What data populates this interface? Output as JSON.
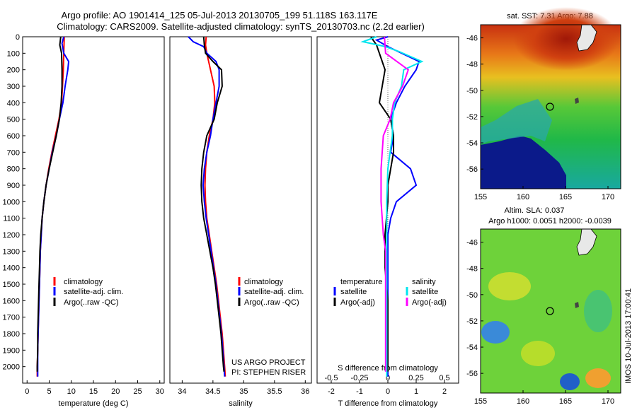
{
  "figure": {
    "title_line1": "Argo profile: AO 1901414_125 05-Jul-2013 20130705_199 51.118S 163.117E",
    "title_line2": "Climatology: CARS2009. Satellite-adjusted climatology: synTS_20130703.nc (2.2d earlier)",
    "credit_line1": "US ARGO PROJECT",
    "credit_line2": "PI: STEPHEN RISER",
    "timestamp": "IMOS 10-Jul-2013 17:00:41",
    "colors": {
      "climatology": "#ff0000",
      "satellite": "#0000ff",
      "argo": "#000000",
      "salinity_satellite": "#00e5ee",
      "salinity_argo": "#ff00ff"
    }
  },
  "chart_data": [
    {
      "type": "line",
      "panel": "temperature",
      "xlabel": "temperature (deg C)",
      "ylabel": "",
      "xlim": [
        -1,
        31
      ],
      "ylim": [
        2100,
        0
      ],
      "xticks": [
        0,
        5,
        10,
        15,
        20,
        25,
        30
      ],
      "yticks": [
        0,
        100,
        200,
        300,
        400,
        500,
        600,
        700,
        800,
        900,
        1000,
        1100,
        1200,
        1300,
        1400,
        1500,
        1600,
        1700,
        1800,
        1900,
        2000
      ],
      "legend": [
        "climatology",
        "satellite-adj. clim.",
        "Argo(..raw -QC)"
      ],
      "series": [
        {
          "name": "climatology",
          "color": "#ff0000",
          "points": [
            [
              8.4,
              0
            ],
            [
              8.3,
              100
            ],
            [
              8.2,
              200
            ],
            [
              8.0,
              300
            ],
            [
              7.8,
              400
            ],
            [
              7.2,
              500
            ],
            [
              6.4,
              600
            ],
            [
              5.6,
              700
            ],
            [
              4.9,
              800
            ],
            [
              4.3,
              900
            ],
            [
              3.8,
              1000
            ],
            [
              3.4,
              1100
            ],
            [
              3.2,
              1200
            ],
            [
              3.0,
              1300
            ],
            [
              2.9,
              1400
            ],
            [
              2.8,
              1500
            ],
            [
              2.7,
              1600
            ],
            [
              2.6,
              1700
            ],
            [
              2.5,
              1800
            ],
            [
              2.4,
              1900
            ],
            [
              2.3,
              2000
            ],
            [
              2.3,
              2060
            ]
          ]
        },
        {
          "name": "satellite-adj. clim.",
          "color": "#0000ff",
          "points": [
            [
              8.3,
              0
            ],
            [
              7.9,
              40
            ],
            [
              8.3,
              100
            ],
            [
              9.4,
              150
            ],
            [
              9.2,
              200
            ],
            [
              8.6,
              300
            ],
            [
              8.1,
              400
            ],
            [
              7.3,
              500
            ],
            [
              6.6,
              600
            ],
            [
              5.7,
              700
            ],
            [
              5.0,
              800
            ],
            [
              4.3,
              900
            ],
            [
              3.8,
              1000
            ],
            [
              3.4,
              1100
            ],
            [
              3.2,
              1200
            ],
            [
              3.0,
              1300
            ],
            [
              2.9,
              1400
            ],
            [
              2.8,
              1500
            ],
            [
              2.7,
              1600
            ],
            [
              2.6,
              1700
            ],
            [
              2.5,
              1800
            ],
            [
              2.4,
              1900
            ],
            [
              2.4,
              2000
            ],
            [
              2.4,
              2060
            ]
          ]
        },
        {
          "name": "Argo(..raw -QC)",
          "color": "#000000",
          "points": [
            [
              7.6,
              0
            ],
            [
              7.4,
              50
            ],
            [
              7.8,
              100
            ],
            [
              7.9,
              200
            ],
            [
              7.9,
              300
            ],
            [
              7.7,
              400
            ],
            [
              7.3,
              500
            ],
            [
              6.6,
              600
            ],
            [
              5.8,
              700
            ],
            [
              5.0,
              800
            ],
            [
              4.3,
              900
            ],
            [
              3.8,
              1000
            ],
            [
              3.4,
              1100
            ],
            [
              3.1,
              1200
            ],
            [
              2.9,
              1300
            ],
            [
              2.8,
              1400
            ],
            [
              2.7,
              1500
            ],
            [
              2.6,
              1600
            ],
            [
              2.5,
              1700
            ],
            [
              2.4,
              1800
            ],
            [
              2.4,
              1900
            ],
            [
              2.3,
              2000
            ],
            [
              2.3,
              2030
            ]
          ]
        }
      ]
    },
    {
      "type": "line",
      "panel": "salinity",
      "xlabel": "salinity",
      "ylabel": "",
      "xlim": [
        33.8,
        36.1
      ],
      "ylim": [
        2100,
        0
      ],
      "xticks": [
        34,
        34.5,
        35,
        35.5,
        36
      ],
      "xticklabels": [
        "34",
        "34.5",
        "35",
        "35.5",
        "36"
      ],
      "legend": [
        "climatology",
        "satellite-adj. clim.",
        "Argo(..raw -QC)"
      ],
      "series": [
        {
          "name": "climatology",
          "color": "#ff0000",
          "points": [
            [
              34.39,
              0
            ],
            [
              34.38,
              50
            ],
            [
              34.4,
              100
            ],
            [
              34.46,
              200
            ],
            [
              34.52,
              300
            ],
            [
              34.53,
              400
            ],
            [
              34.5,
              500
            ],
            [
              34.44,
              600
            ],
            [
              34.4,
              700
            ],
            [
              34.38,
              800
            ],
            [
              34.37,
              900
            ],
            [
              34.38,
              1000
            ],
            [
              34.4,
              1100
            ],
            [
              34.44,
              1200
            ],
            [
              34.48,
              1300
            ],
            [
              34.52,
              1400
            ],
            [
              34.56,
              1500
            ],
            [
              34.59,
              1600
            ],
            [
              34.62,
              1700
            ],
            [
              34.65,
              1800
            ],
            [
              34.67,
              1900
            ],
            [
              34.69,
              2000
            ],
            [
              34.7,
              2060
            ]
          ]
        },
        {
          "name": "satellite-adj. clim.",
          "color": "#0000ff",
          "points": [
            [
              34.1,
              0
            ],
            [
              34.18,
              30
            ],
            [
              34.35,
              60
            ],
            [
              34.4,
              100
            ],
            [
              34.55,
              150
            ],
            [
              34.6,
              200
            ],
            [
              34.6,
              300
            ],
            [
              34.55,
              400
            ],
            [
              34.5,
              500
            ],
            [
              34.46,
              600
            ],
            [
              34.4,
              700
            ],
            [
              34.36,
              800
            ],
            [
              34.34,
              900
            ],
            [
              34.36,
              1000
            ],
            [
              34.39,
              1100
            ],
            [
              34.43,
              1200
            ],
            [
              34.47,
              1300
            ],
            [
              34.51,
              1400
            ],
            [
              34.55,
              1500
            ],
            [
              34.58,
              1600
            ],
            [
              34.61,
              1700
            ],
            [
              34.64,
              1800
            ],
            [
              34.66,
              1900
            ],
            [
              34.68,
              2000
            ],
            [
              34.69,
              2060
            ]
          ]
        },
        {
          "name": "Argo(..raw -QC)",
          "color": "#000000",
          "points": [
            [
              34.35,
              0
            ],
            [
              34.36,
              50
            ],
            [
              34.38,
              100
            ],
            [
              34.5,
              150
            ],
            [
              34.64,
              200
            ],
            [
              34.65,
              300
            ],
            [
              34.57,
              400
            ],
            [
              34.52,
              500
            ],
            [
              34.4,
              600
            ],
            [
              34.35,
              700
            ],
            [
              34.32,
              800
            ],
            [
              34.31,
              900
            ],
            [
              34.32,
              1000
            ],
            [
              34.35,
              1100
            ],
            [
              34.4,
              1200
            ],
            [
              34.45,
              1300
            ],
            [
              34.5,
              1400
            ],
            [
              34.54,
              1500
            ],
            [
              34.57,
              1600
            ],
            [
              34.6,
              1700
            ],
            [
              34.63,
              1800
            ],
            [
              34.65,
              1900
            ],
            [
              34.67,
              2000
            ],
            [
              34.68,
              2030
            ]
          ]
        }
      ]
    },
    {
      "type": "line",
      "panel": "difference",
      "xlabel": "T difference from climatology",
      "xlabel_top": "S difference from climatology",
      "ylabel": "",
      "xlim": [
        -2.5,
        2.5
      ],
      "ylim": [
        2100,
        0
      ],
      "xticks_temperature": [
        -2,
        -1,
        0,
        1,
        2
      ],
      "xticks_salinity": [
        -0.5,
        -0.25,
        0,
        0.25,
        0.5
      ],
      "xticklabels_salinity": [
        "-0.5",
        "-0.25",
        "0",
        "0.25",
        "0.5"
      ],
      "legend_temperature_title": "temperature",
      "legend_salinity_title": "salinity",
      "legend_temperature": [
        "satellite",
        "Argo(-adj)"
      ],
      "legend_salinity": [
        "satellite",
        "Argo(-adj)"
      ],
      "series": [
        {
          "name": "temperature satellite",
          "color": "#0000ff",
          "points": [
            [
              0.0,
              0
            ],
            [
              -0.4,
              20
            ],
            [
              0.0,
              60
            ],
            [
              1.1,
              150
            ],
            [
              1.0,
              200
            ],
            [
              0.6,
              300
            ],
            [
              0.3,
              400
            ],
            [
              0.1,
              500
            ],
            [
              0.2,
              600
            ],
            [
              0.1,
              700
            ],
            [
              0.8,
              800
            ],
            [
              1.0,
              900
            ],
            [
              0.3,
              1000
            ],
            [
              0.1,
              1100
            ],
            [
              0.0,
              1200
            ],
            [
              0.0,
              1400
            ],
            [
              0.0,
              1600
            ],
            [
              0.0,
              1800
            ],
            [
              0.0,
              2000
            ],
            [
              0.0,
              2060
            ]
          ]
        },
        {
          "name": "temperature Argo(-adj)",
          "color": "#000000",
          "points": [
            [
              -0.6,
              0
            ],
            [
              -0.4,
              50
            ],
            [
              -0.3,
              100
            ],
            [
              -0.2,
              150
            ],
            [
              -0.1,
              200
            ],
            [
              -0.2,
              300
            ],
            [
              -0.3,
              400
            ],
            [
              0.1,
              500
            ],
            [
              0.2,
              600
            ],
            [
              0.2,
              700
            ],
            [
              0.1,
              800
            ],
            [
              0.0,
              900
            ],
            [
              0.0,
              1000
            ],
            [
              -0.1,
              1200
            ],
            [
              -0.1,
              1400
            ],
            [
              0.0,
              1600
            ],
            [
              0.0,
              1800
            ],
            [
              0.0,
              2000
            ],
            [
              0.0,
              2030
            ]
          ]
        },
        {
          "name": "salinity satellite",
          "color": "#00e5ee",
          "points": [
            [
              -0.1,
              0
            ],
            [
              -0.22,
              30
            ],
            [
              -0.02,
              60
            ],
            [
              0.1,
              90
            ],
            [
              0.3,
              150
            ],
            [
              0.14,
              200
            ],
            [
              0.12,
              300
            ],
            [
              0.06,
              400
            ],
            [
              0.04,
              500
            ],
            [
              0.04,
              600
            ],
            [
              0.02,
              700
            ],
            [
              0.0,
              800
            ],
            [
              -0.01,
              1000
            ],
            [
              -0.01,
              1200
            ],
            [
              -0.01,
              1400
            ],
            [
              -0.01,
              1600
            ],
            [
              -0.01,
              1800
            ],
            [
              -0.01,
              2000
            ],
            [
              -0.01,
              2060
            ]
          ]
        },
        {
          "name": "salinity Argo(-adj)",
          "color": "#ff00ff",
          "points": [
            [
              -0.03,
              0
            ],
            [
              -0.02,
              100
            ],
            [
              0.18,
              200
            ],
            [
              0.13,
              300
            ],
            [
              0.05,
              400
            ],
            [
              0.02,
              500
            ],
            [
              -0.04,
              600
            ],
            [
              -0.05,
              700
            ],
            [
              -0.06,
              800
            ],
            [
              -0.06,
              900
            ],
            [
              -0.06,
              1000
            ],
            [
              -0.05,
              1100
            ],
            [
              -0.04,
              1200
            ],
            [
              -0.02,
              1300
            ],
            [
              -0.02,
              1400
            ],
            [
              -0.02,
              1600
            ],
            [
              -0.02,
              1800
            ],
            [
              -0.02,
              2000
            ],
            [
              -0.02,
              2030
            ]
          ]
        }
      ]
    },
    {
      "type": "heatmap",
      "panel": "map_sst",
      "title": "sat. SST: 7.31  Argo: 7.88",
      "xlim": [
        155,
        171.5
      ],
      "ylim": [
        -57.5,
        -45
      ],
      "xticks": [
        155,
        160,
        165,
        170
      ],
      "yticks": [
        -46,
        -48,
        -50,
        -52,
        -54,
        -56
      ],
      "marker": {
        "lon": 163.1,
        "lat": -51.1
      }
    },
    {
      "type": "heatmap",
      "panel": "map_sla",
      "title": "Altim. SLA: 0.037",
      "subtitle": "Argo h1000: 0.0051 h2000: -0.0039",
      "xlim": [
        155,
        171.5
      ],
      "ylim": [
        -57.5,
        -45
      ],
      "xticks": [
        155,
        160,
        165,
        170
      ],
      "yticks": [
        -46,
        -48,
        -50,
        -52,
        -54,
        -56
      ],
      "marker": {
        "lon": 163.1,
        "lat": -51.1
      }
    }
  ]
}
